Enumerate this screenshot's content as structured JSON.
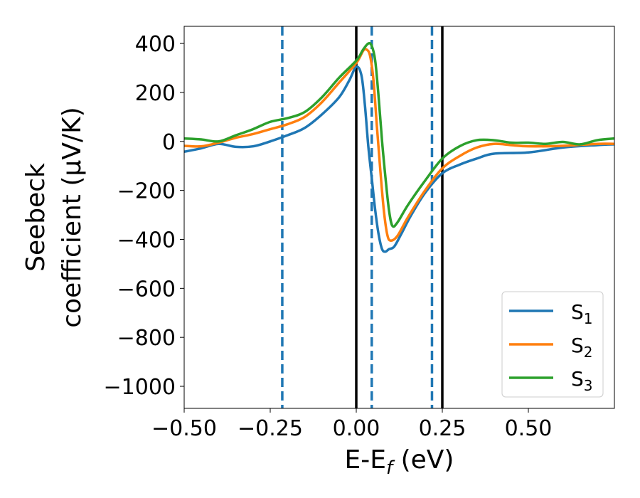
{
  "chart_data": {
    "type": "line",
    "xlabel": "E-E",
    "xlabel_sub": "f",
    "xlabel_unit": " (eV)",
    "ylabel_line1": "Seebeck",
    "ylabel_line2": "coefficient  (μV/K)",
    "xlim": [
      -0.5,
      0.75
    ],
    "ylim": [
      -1090,
      470
    ],
    "x_ticks": [
      -0.5,
      -0.25,
      0.0,
      0.25,
      0.5
    ],
    "x_tick_labels": [
      "−0.50",
      "−0.25",
      "0.00",
      "0.25",
      "0.50"
    ],
    "y_ticks": [
      400,
      200,
      0,
      -200,
      -400,
      -600,
      -800,
      -1000
    ],
    "y_tick_labels": [
      "400",
      "200",
      "0",
      "−200",
      "−400",
      "−600",
      "−800",
      "−1000"
    ],
    "grid": false,
    "legend_position": "bottom-right",
    "vertical_lines": [
      {
        "x": 0.0,
        "style": "solid",
        "color": "#000000"
      },
      {
        "x": 0.25,
        "style": "solid",
        "color": "#000000"
      },
      {
        "x": -0.215,
        "style": "dashed",
        "color": "#1f77b4"
      },
      {
        "x": 0.045,
        "style": "dashed",
        "color": "#1f77b4"
      },
      {
        "x": 0.22,
        "style": "dashed",
        "color": "#1f77b4"
      }
    ],
    "series": [
      {
        "name": "S",
        "sub": "1",
        "color": "#1f77b4",
        "points": [
          [
            -0.5,
            -42
          ],
          [
            -0.45,
            -28
          ],
          [
            -0.4,
            -10
          ],
          [
            -0.35,
            -22
          ],
          [
            -0.3,
            -20
          ],
          [
            -0.25,
            0
          ],
          [
            -0.2,
            25
          ],
          [
            -0.15,
            55
          ],
          [
            -0.1,
            110
          ],
          [
            -0.05,
            180
          ],
          [
            -0.02,
            250
          ],
          [
            0.0,
            305
          ],
          [
            0.015,
            270
          ],
          [
            0.025,
            150
          ],
          [
            0.035,
            -20
          ],
          [
            0.045,
            -150
          ],
          [
            0.055,
            -280
          ],
          [
            0.065,
            -380
          ],
          [
            0.075,
            -440
          ],
          [
            0.085,
            -450
          ],
          [
            0.095,
            -440
          ],
          [
            0.11,
            -430
          ],
          [
            0.13,
            -380
          ],
          [
            0.16,
            -300
          ],
          [
            0.2,
            -210
          ],
          [
            0.25,
            -130
          ],
          [
            0.3,
            -95
          ],
          [
            0.35,
            -70
          ],
          [
            0.4,
            -50
          ],
          [
            0.5,
            -45
          ],
          [
            0.6,
            -25
          ],
          [
            0.7,
            -15
          ],
          [
            0.75,
            -12
          ]
        ]
      },
      {
        "name": "S",
        "sub": "2",
        "color": "#ff7f0e",
        "points": [
          [
            -0.5,
            -18
          ],
          [
            -0.45,
            -20
          ],
          [
            -0.4,
            -5
          ],
          [
            -0.35,
            15
          ],
          [
            -0.3,
            30
          ],
          [
            -0.25,
            50
          ],
          [
            -0.2,
            70
          ],
          [
            -0.15,
            100
          ],
          [
            -0.1,
            160
          ],
          [
            -0.05,
            240
          ],
          [
            0.0,
            320
          ],
          [
            0.02,
            370
          ],
          [
            0.03,
            375
          ],
          [
            0.04,
            350
          ],
          [
            0.05,
            250
          ],
          [
            0.06,
            60
          ],
          [
            0.07,
            -120
          ],
          [
            0.08,
            -280
          ],
          [
            0.09,
            -380
          ],
          [
            0.1,
            -405
          ],
          [
            0.12,
            -385
          ],
          [
            0.15,
            -310
          ],
          [
            0.2,
            -200
          ],
          [
            0.25,
            -110
          ],
          [
            0.3,
            -60
          ],
          [
            0.35,
            -25
          ],
          [
            0.4,
            -10
          ],
          [
            0.45,
            -15
          ],
          [
            0.5,
            -20
          ],
          [
            0.6,
            -18
          ],
          [
            0.7,
            -10
          ],
          [
            0.75,
            -10
          ]
        ]
      },
      {
        "name": "S",
        "sub": "3",
        "color": "#2ca02c",
        "points": [
          [
            -0.5,
            12
          ],
          [
            -0.45,
            8
          ],
          [
            -0.4,
            0
          ],
          [
            -0.35,
            25
          ],
          [
            -0.3,
            50
          ],
          [
            -0.25,
            80
          ],
          [
            -0.2,
            95
          ],
          [
            -0.15,
            120
          ],
          [
            -0.1,
            180
          ],
          [
            -0.05,
            260
          ],
          [
            0.0,
            330
          ],
          [
            0.02,
            375
          ],
          [
            0.035,
            400
          ],
          [
            0.045,
            390
          ],
          [
            0.055,
            330
          ],
          [
            0.065,
            180
          ],
          [
            0.075,
            0
          ],
          [
            0.085,
            -150
          ],
          [
            0.095,
            -280
          ],
          [
            0.105,
            -345
          ],
          [
            0.12,
            -330
          ],
          [
            0.15,
            -260
          ],
          [
            0.2,
            -160
          ],
          [
            0.25,
            -70
          ],
          [
            0.3,
            -20
          ],
          [
            0.35,
            5
          ],
          [
            0.4,
            5
          ],
          [
            0.45,
            -5
          ],
          [
            0.5,
            -5
          ],
          [
            0.55,
            -10
          ],
          [
            0.6,
            -2
          ],
          [
            0.65,
            -12
          ],
          [
            0.7,
            5
          ],
          [
            0.75,
            12
          ]
        ]
      }
    ]
  }
}
